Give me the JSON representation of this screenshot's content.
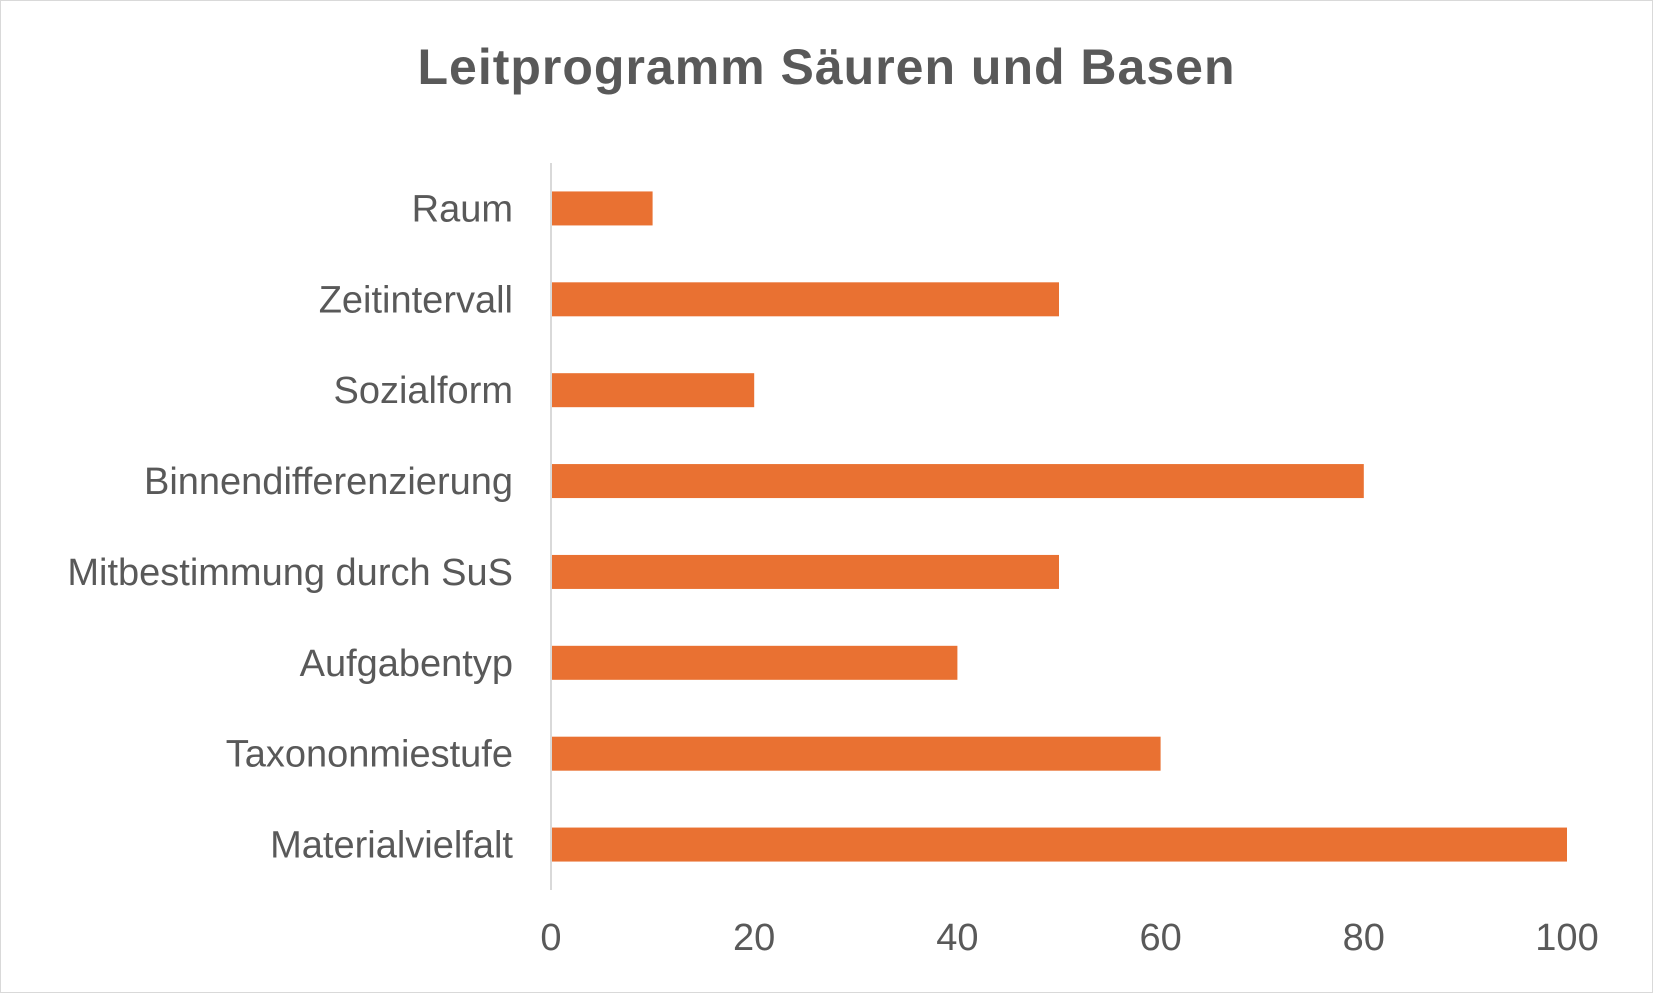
{
  "chart_data": {
    "type": "bar",
    "orientation": "horizontal",
    "title": "Leitprogramm Säuren und Basen",
    "categories": [
      "Raum",
      "Zeitintervall",
      "Sozialform",
      "Binnendifferenzierung",
      "Mitbestimmung durch SuS",
      "Aufgabentyp",
      "Taxononmiestufe",
      "Materialvielfalt"
    ],
    "values": [
      10,
      50,
      20,
      80,
      50,
      40,
      60,
      100
    ],
    "xlim": [
      0,
      100
    ],
    "xticks": [
      "0",
      "20",
      "40",
      "60",
      "80",
      "100"
    ],
    "xlabel": "",
    "ylabel": "",
    "grid": false,
    "legend": "none",
    "bar_color": "#E97132",
    "axis_color": "#d9d9d9",
    "text_color": "#595959"
  }
}
